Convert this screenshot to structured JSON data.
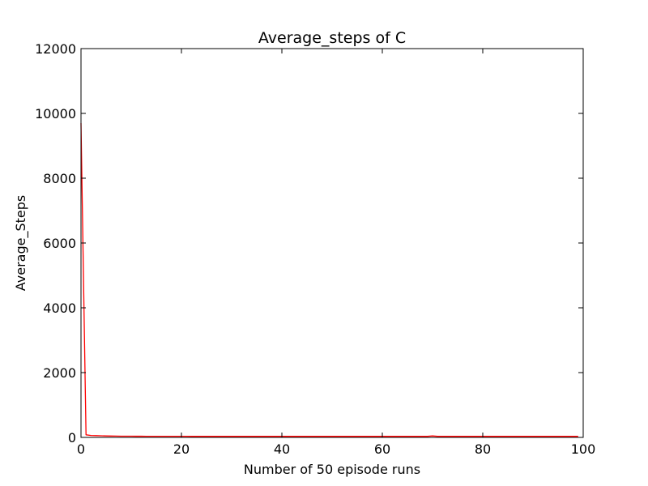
{
  "chart_data": {
    "type": "line",
    "title": "Average_steps of C",
    "xlabel": "Number of 50 episode runs",
    "ylabel": "Average_Steps",
    "xlim": [
      0,
      100
    ],
    "ylim": [
      0,
      12000
    ],
    "xticks": [
      0,
      20,
      40,
      60,
      80,
      100
    ],
    "yticks": [
      0,
      2000,
      4000,
      6000,
      8000,
      10000,
      12000
    ],
    "grid": false,
    "legend": "none",
    "series": [
      {
        "color": "#ff0000",
        "x": [
          0,
          1,
          2,
          3,
          4,
          5,
          6,
          7,
          8,
          9,
          10,
          11,
          12,
          13,
          14,
          15,
          16,
          17,
          18,
          19,
          20,
          21,
          22,
          23,
          24,
          25,
          26,
          27,
          28,
          29,
          30,
          31,
          32,
          33,
          34,
          35,
          36,
          37,
          38,
          39,
          40,
          41,
          42,
          43,
          44,
          45,
          46,
          47,
          48,
          49,
          50,
          51,
          52,
          53,
          54,
          55,
          56,
          57,
          58,
          59,
          60,
          61,
          62,
          63,
          64,
          65,
          66,
          67,
          68,
          69,
          70,
          71,
          72,
          73,
          74,
          75,
          76,
          77,
          78,
          79,
          80,
          81,
          82,
          83,
          84,
          85,
          86,
          87,
          88,
          89,
          90,
          91,
          92,
          93,
          94,
          95,
          96,
          97,
          98,
          99
        ],
        "y": [
          9700,
          80,
          60,
          55,
          50,
          45,
          42,
          40,
          38,
          38,
          37,
          36,
          36,
          35,
          35,
          35,
          34,
          34,
          34,
          34,
          34,
          34,
          33,
          33,
          33,
          33,
          33,
          33,
          33,
          33,
          33,
          33,
          33,
          33,
          33,
          33,
          33,
          33,
          33,
          33,
          33,
          33,
          33,
          33,
          33,
          33,
          33,
          33,
          33,
          33,
          33,
          33,
          33,
          33,
          33,
          33,
          33,
          33,
          33,
          33,
          33,
          33,
          33,
          33,
          33,
          33,
          33,
          33,
          33,
          33,
          45,
          33,
          33,
          33,
          33,
          33,
          33,
          33,
          33,
          33,
          33,
          33,
          33,
          33,
          33,
          33,
          33,
          33,
          33,
          33,
          33,
          33,
          33,
          33,
          33,
          33,
          33,
          33,
          33,
          33
        ]
      }
    ]
  }
}
